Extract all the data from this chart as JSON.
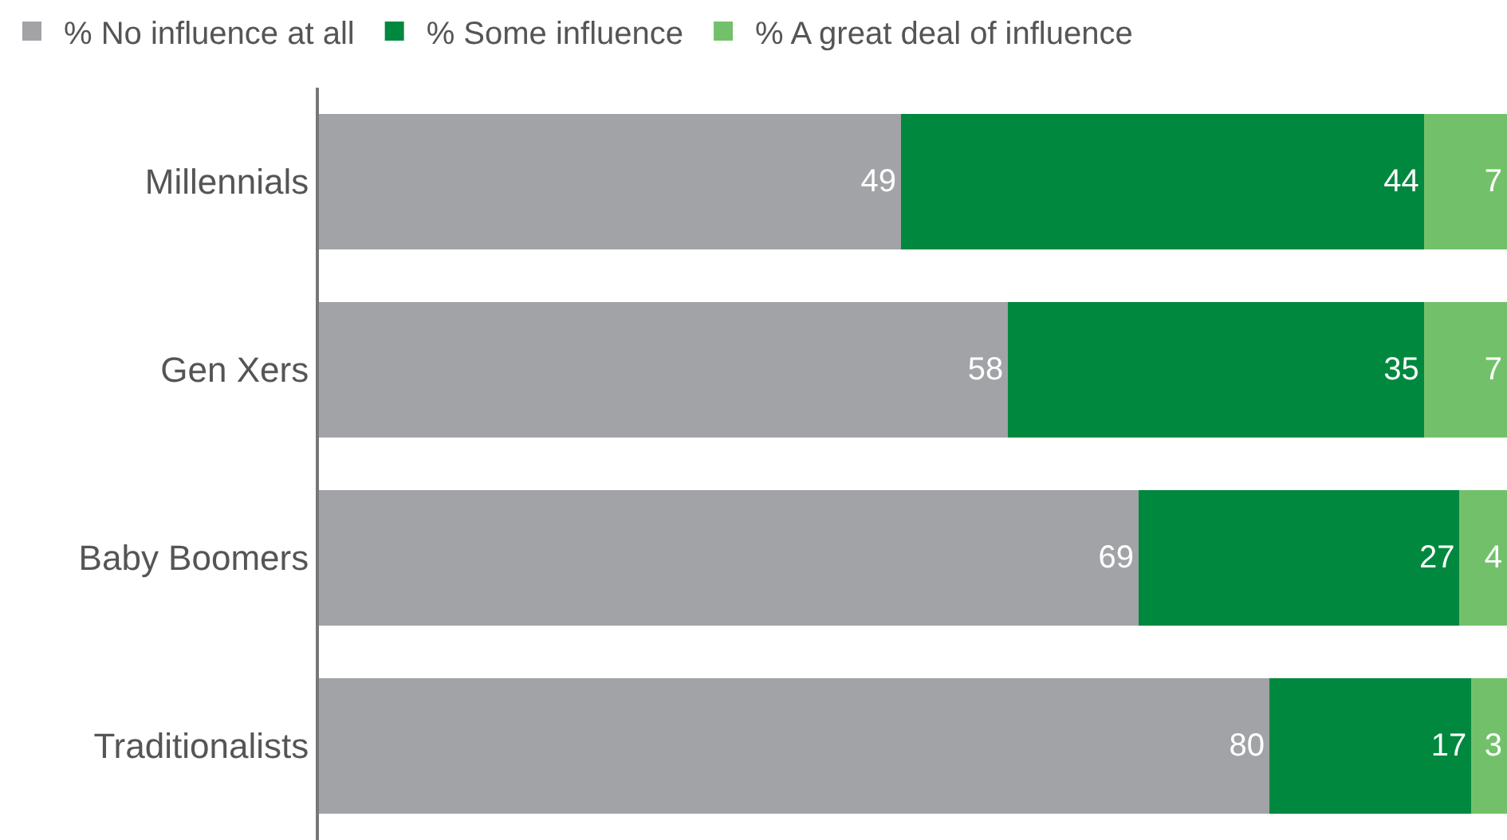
{
  "chart_data": {
    "type": "bar",
    "orientation": "horizontal",
    "stacked": true,
    "xlim": [
      0,
      100
    ],
    "tick_labels": "y",
    "legend": "top",
    "data_labels": true,
    "categories": [
      "Millennials",
      "Gen Xers",
      "Baby Boomers",
      "Traditionalists"
    ],
    "series": [
      {
        "name": "% No influence at all",
        "color": "#a2a3a7",
        "values": [
          49,
          58,
          69,
          80
        ]
      },
      {
        "name": "% Some influence",
        "color": "#00883f",
        "values": [
          44,
          35,
          27,
          17
        ]
      },
      {
        "name": "% A great deal of influence",
        "color": "#72c16a",
        "values": [
          7,
          7,
          4,
          3
        ]
      }
    ]
  }
}
